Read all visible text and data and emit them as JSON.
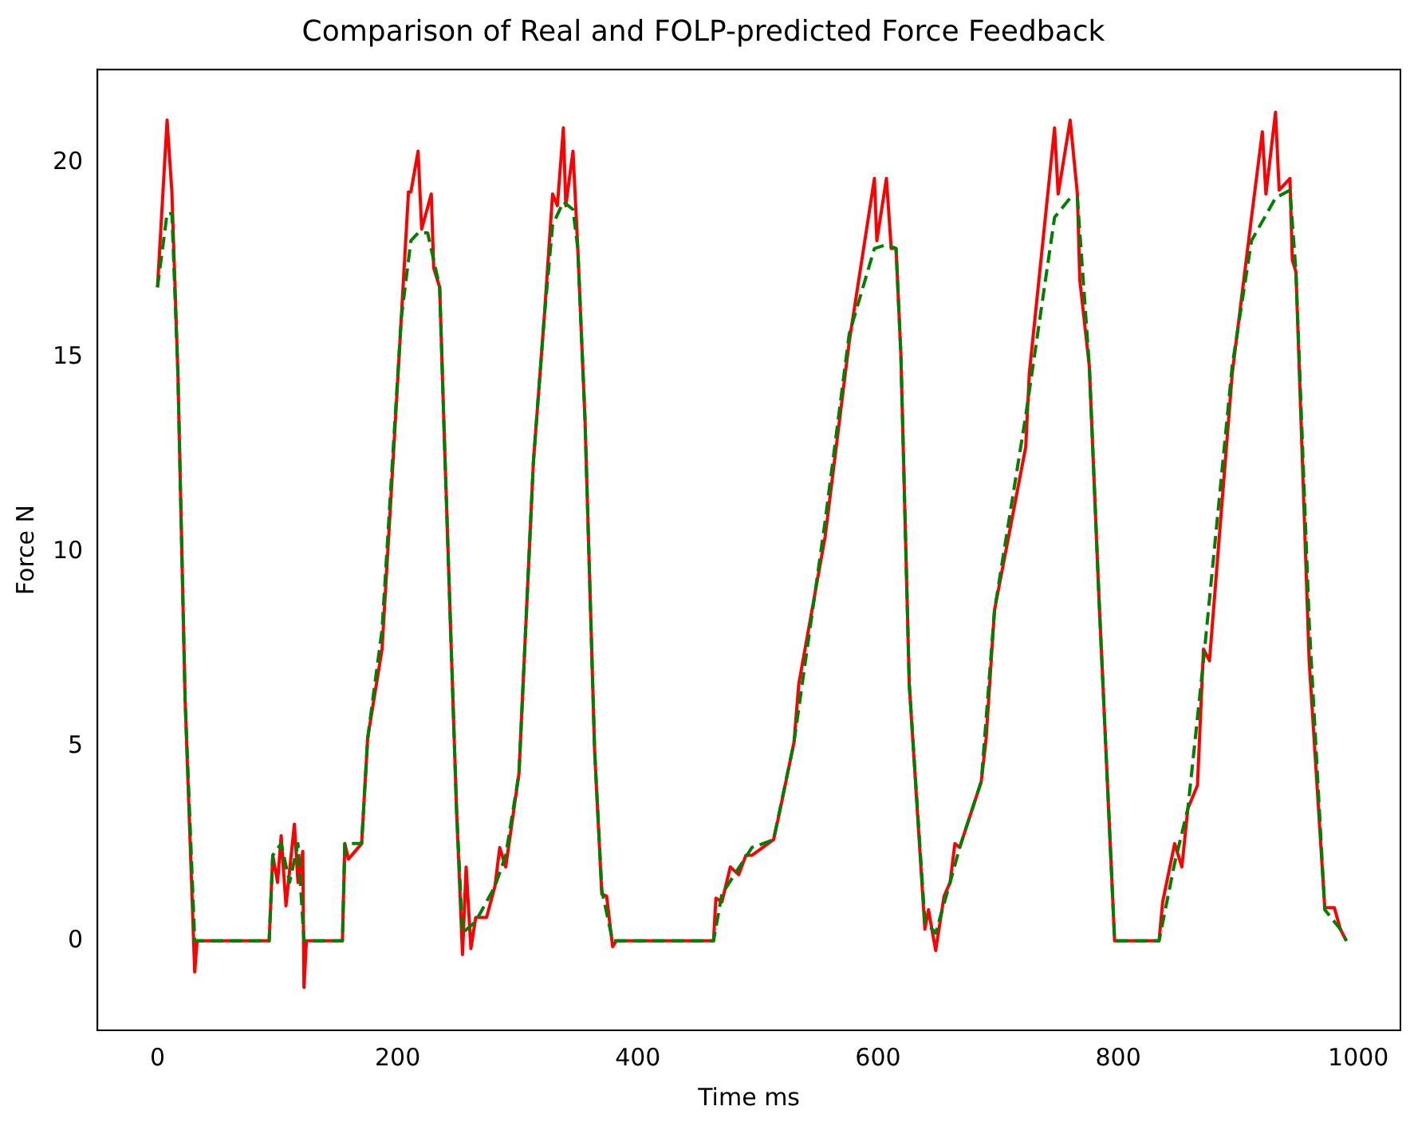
{
  "chart_data": {
    "type": "line",
    "title": "Comparison of Real and FOLP-predicted Force Feedback",
    "xlabel": "Time ms",
    "ylabel": "Force N",
    "xlim": [
      -50,
      1035
    ],
    "xticks": [
      0,
      200,
      400,
      600,
      800,
      1000
    ],
    "ylim": [
      -2.3,
      22.4
    ],
    "yticks": [
      0,
      5,
      10,
      15,
      20
    ],
    "grid": false,
    "legend": false,
    "marker": "none",
    "series": [
      {
        "color": "#008000",
        "line_style": "dashed",
        "x": [
          0,
          8,
          12,
          17,
          23,
          31,
          93,
          96,
          103,
          110,
          117,
          122,
          154,
          156,
          170,
          175,
          187,
          195,
          203,
          211,
          217,
          225,
          230,
          235,
          239,
          249,
          254,
          265,
          281,
          290,
          301,
          313,
          322,
          329,
          338,
          346,
          350,
          356,
          364,
          370,
          379,
          463,
          470,
          495,
          513,
          530,
          556,
          576,
          597,
          607,
          615,
          619,
          626,
          639,
          648,
          660,
          668,
          686,
          697,
          723,
          747,
          760,
          766,
          776,
          784,
          792,
          797,
          834,
          847,
          858,
          871,
          895,
          911,
          931,
          943,
          948,
          959,
          972,
          985,
          990
        ],
        "values": [
          16.8,
          18.7,
          18.7,
          14.6,
          6.2,
          0,
          0,
          2.2,
          2.5,
          1.5,
          2.5,
          0,
          0,
          2.5,
          2.5,
          5.2,
          8,
          12,
          16,
          18,
          18.2,
          18.2,
          17.5,
          16.8,
          12.8,
          3.4,
          0.2,
          0.5,
          1.4,
          2.2,
          4.3,
          12.3,
          16,
          18.4,
          19,
          18.8,
          17.8,
          13.4,
          4.9,
          1.3,
          0,
          0,
          1.2,
          2.4,
          2.6,
          5.1,
          10.8,
          15.6,
          17.8,
          17.9,
          17.8,
          15.1,
          6.6,
          0.5,
          0.2,
          1.5,
          2.4,
          4.1,
          8.5,
          13.5,
          18.6,
          19.1,
          19.1,
          14.75,
          8.8,
          3.4,
          0,
          0,
          2,
          3.4,
          7.2,
          14.8,
          18,
          19.1,
          19.3,
          17.2,
          8.2,
          0.8,
          0.3,
          0
        ]
      },
      {
        "color": "#ff0000",
        "line_style": "solid",
        "x": [
          0,
          8,
          12,
          17,
          23,
          31,
          33,
          93,
          96,
          100,
          103,
          107,
          114,
          117,
          121,
          122,
          124,
          154,
          156,
          159,
          170,
          175,
          187,
          195,
          203,
          209,
          211,
          217,
          220,
          228,
          230,
          235,
          239,
          249,
          254,
          257,
          261,
          265,
          274,
          281,
          285,
          290,
          301,
          313,
          322,
          329,
          333,
          338,
          340,
          346,
          350,
          356,
          364,
          370,
          374,
          379,
          382,
          463,
          465,
          470,
          477,
          484,
          490,
          495,
          513,
          518,
          530,
          534,
          556,
          576,
          597,
          599,
          607,
          611,
          615,
          619,
          626,
          639,
          642,
          648,
          655,
          660,
          664,
          668,
          686,
          690,
          697,
          723,
          726,
          747,
          750,
          760,
          766,
          768,
          776,
          784,
          792,
          797,
          834,
          837,
          847,
          853,
          858,
          866,
          871,
          876,
          895,
          911,
          920,
          923,
          931,
          934,
          943,
          945,
          948,
          959,
          972,
          980,
          985,
          990
        ],
        "values": [
          16.8,
          21.1,
          19.25,
          14.6,
          6.2,
          -0.8,
          0,
          0,
          2.2,
          1.5,
          2.7,
          0.9,
          3,
          1.5,
          2.3,
          -1.2,
          0,
          0,
          2.5,
          2.1,
          2.5,
          5.2,
          7.5,
          11.7,
          16,
          19.25,
          19.25,
          20.3,
          18.3,
          19.2,
          17.3,
          16.8,
          12.8,
          3.4,
          -0.35,
          1.9,
          -0.2,
          0.6,
          0.6,
          1.4,
          2.4,
          1.9,
          4.3,
          12.3,
          16,
          19.2,
          18.9,
          20.9,
          18.9,
          20.3,
          17.8,
          13.4,
          4.9,
          1.2,
          1.15,
          -0.15,
          0,
          0,
          1.1,
          1,
          1.9,
          1.7,
          2.2,
          2.2,
          2.6,
          3.3,
          5.1,
          6.6,
          10.4,
          15.4,
          19.6,
          18,
          19.6,
          17.8,
          17.8,
          15.1,
          6.6,
          0.3,
          0.8,
          -0.25,
          1.15,
          1.5,
          2.5,
          2.4,
          4.1,
          5.2,
          8.5,
          12.7,
          14.6,
          20.9,
          19.2,
          21.1,
          19.2,
          17,
          14.75,
          8.8,
          3.4,
          0,
          0,
          1,
          2.5,
          1.9,
          3.4,
          4,
          7.5,
          7.2,
          14.6,
          18.6,
          20.8,
          19.2,
          21.3,
          19.3,
          19.6,
          17.5,
          17.2,
          7.2,
          0.85,
          0.85,
          0.3,
          0
        ]
      }
    ]
  }
}
